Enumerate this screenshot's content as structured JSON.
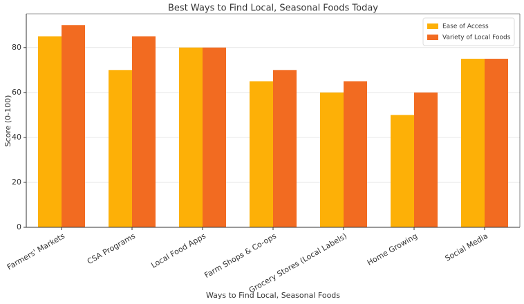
{
  "chart_data": {
    "type": "bar",
    "title": "Best Ways to Find Local, Seasonal Foods Today",
    "x_label": "Ways to Find Local, Seasonal Foods",
    "y_label": "Score (0-100)",
    "categories": [
      "Farmers' Markets",
      "CSA Programs",
      "Local Food Apps",
      "Farm Shops & Co-ops",
      "Grocery Stores (Local Labels)",
      "Home Growing",
      "Social Media"
    ],
    "series": [
      {
        "name": "Ease of Access",
        "color": "#fdb007",
        "values": [
          85,
          70,
          80,
          65,
          60,
          50,
          75
        ]
      },
      {
        "name": "Variety of Local Foods",
        "color": "#f26b21",
        "values": [
          90,
          85,
          80,
          70,
          65,
          60,
          75
        ]
      }
    ],
    "ylim": [
      0,
      95
    ],
    "yticks": [
      0,
      20,
      40,
      60,
      80
    ],
    "grid": true,
    "legend": "upper right"
  }
}
